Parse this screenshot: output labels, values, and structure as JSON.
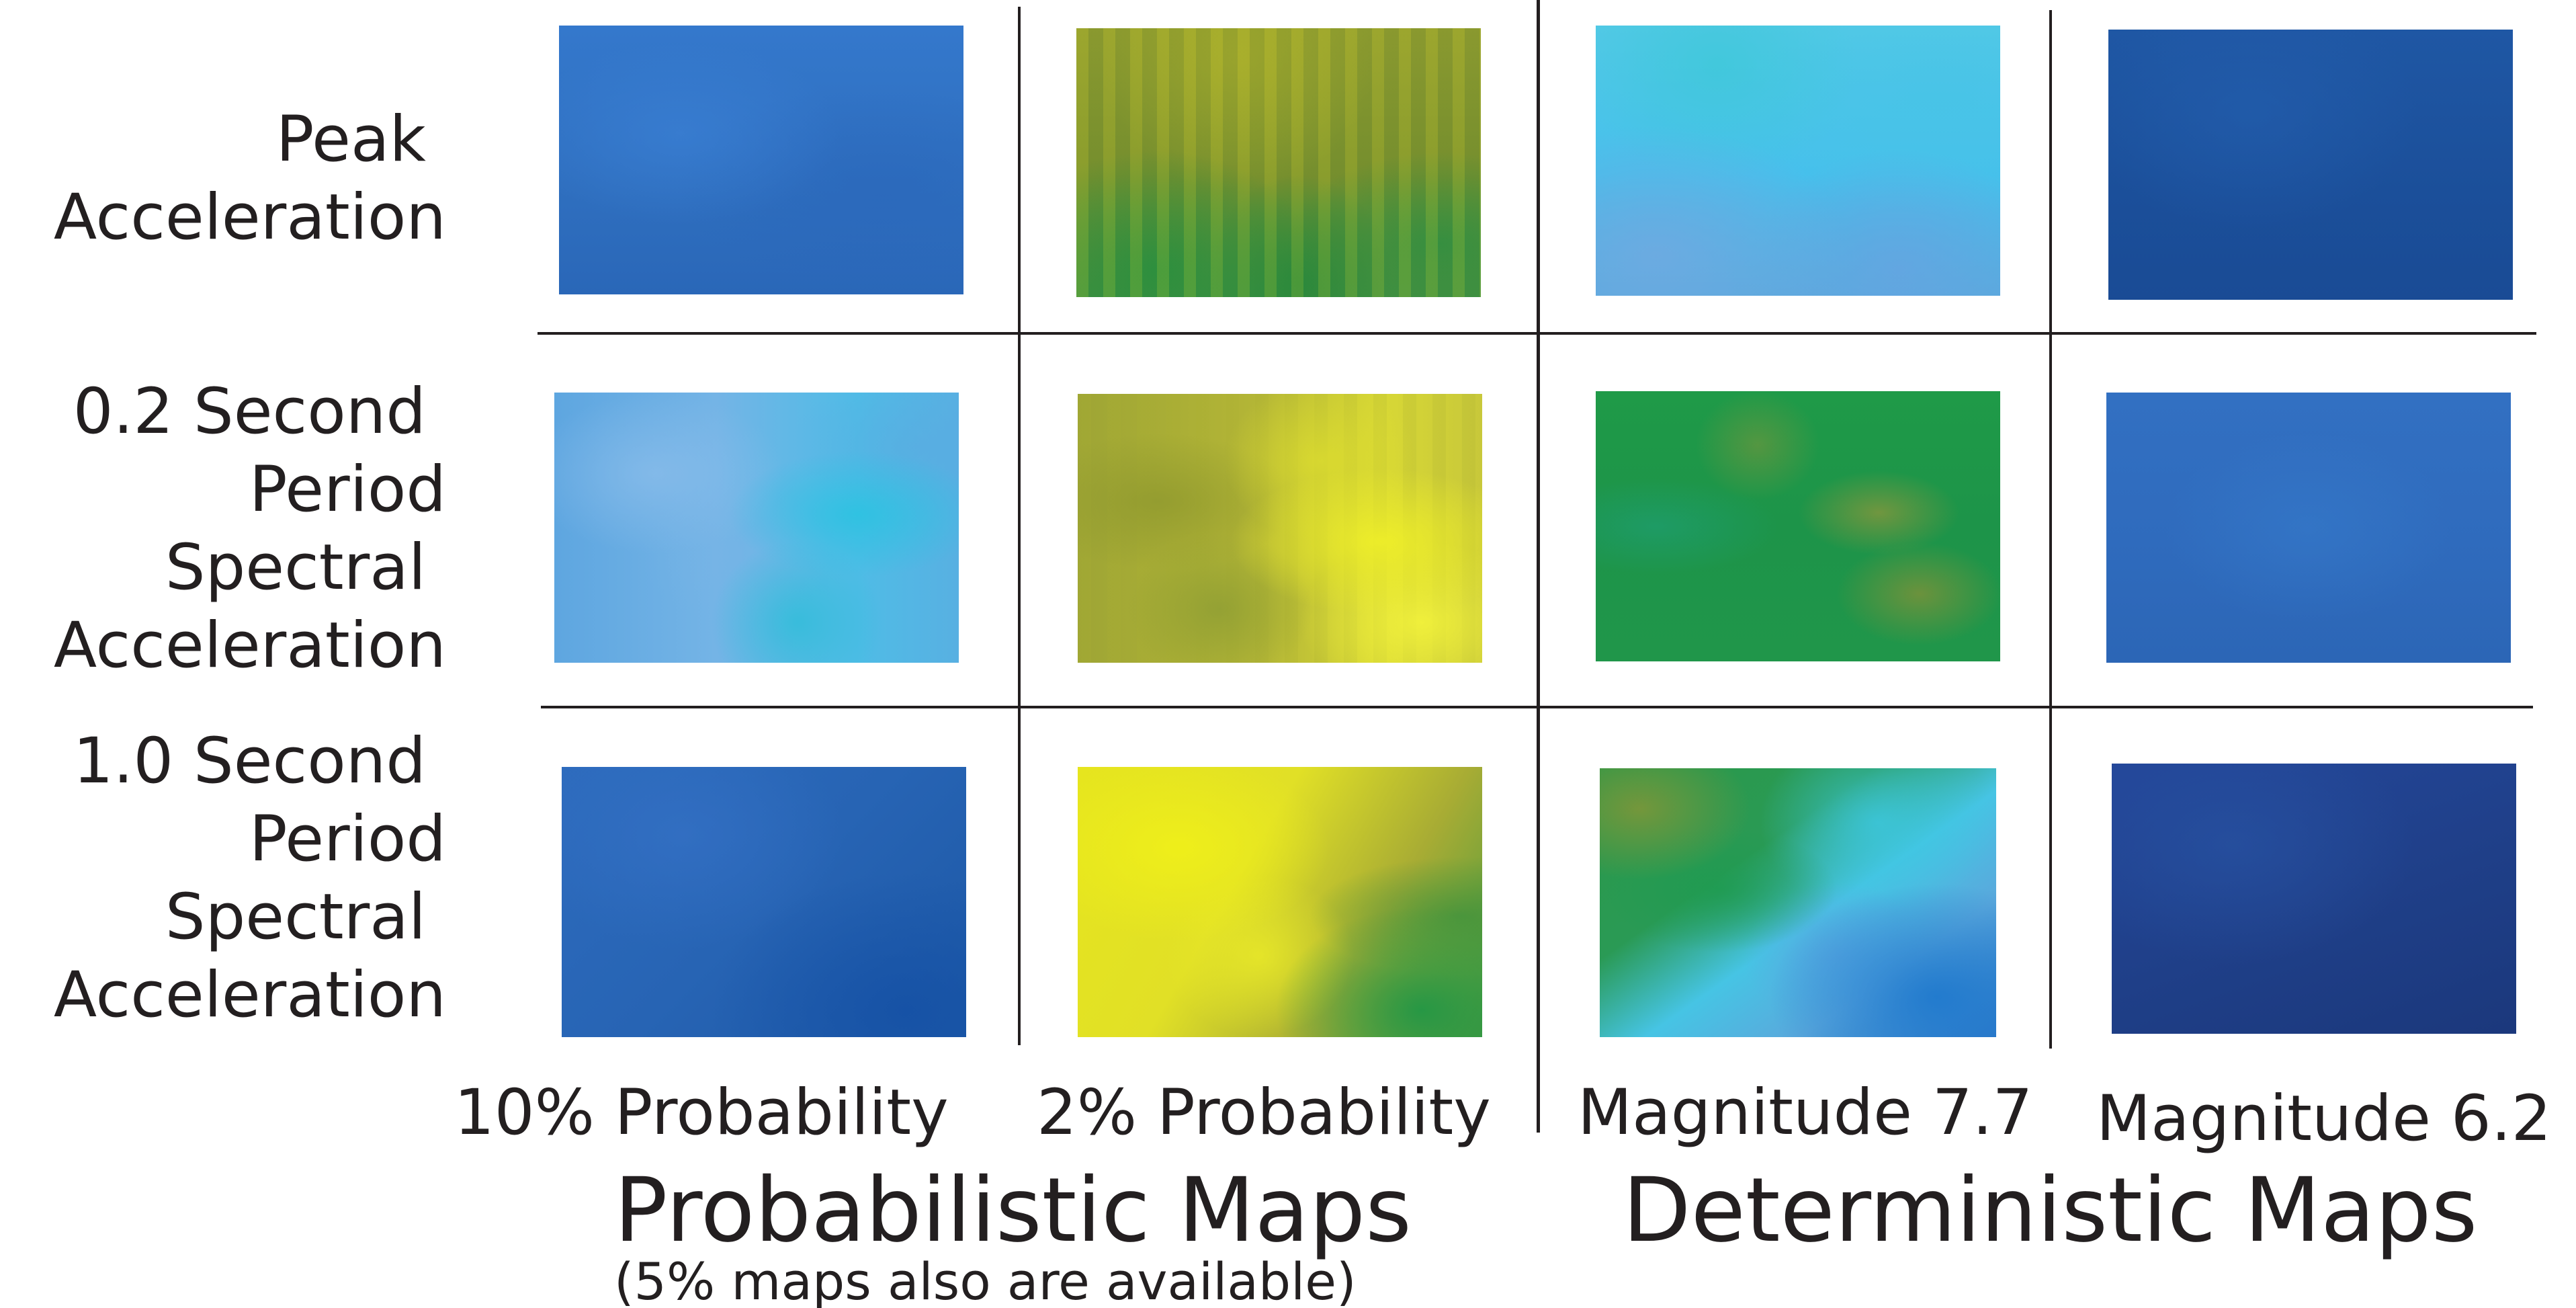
{
  "row_labels": [
    {
      "lines": [
        "Peak",
        "Acceleration"
      ]
    },
    {
      "lines": [
        "0.2 Second",
        "Period",
        "Spectral",
        "Acceleration"
      ]
    },
    {
      "lines": [
        "1.0 Second",
        "Period",
        "Spectral",
        "Acceleration"
      ]
    }
  ],
  "column_labels": [
    "10% Probability",
    "2% Probability",
    "Magnitude 7.7",
    "Magnitude 6.2"
  ],
  "groups": {
    "probabilistic": {
      "title": "Probabilistic Maps",
      "note": "(5% maps also are available)"
    },
    "deterministic": {
      "title": "Deterministic Maps"
    }
  },
  "map_color_schemes": [
    [
      "blue-uniform",
      "olive-green-streaked",
      "cyan-light-blue",
      "dark-blue-uniform"
    ],
    [
      "light-blue-cyan-mottled",
      "olive-yellow-mottled",
      "green-olive-mottled",
      "blue-uniform"
    ],
    [
      "blue-gradient",
      "yellow-olive-green",
      "green-cyan-blue",
      "navy-uniform"
    ]
  ],
  "palette": {
    "blue": "#2f6fbf",
    "dark_blue": "#1b4f9a",
    "navy": "#1e3d80",
    "cyan": "#47c4ea",
    "light_blue": "#6db4e6",
    "green": "#1f9a48",
    "olive": "#8a9a2c",
    "yellow": "#e6e51e",
    "lines": "#231f20"
  }
}
